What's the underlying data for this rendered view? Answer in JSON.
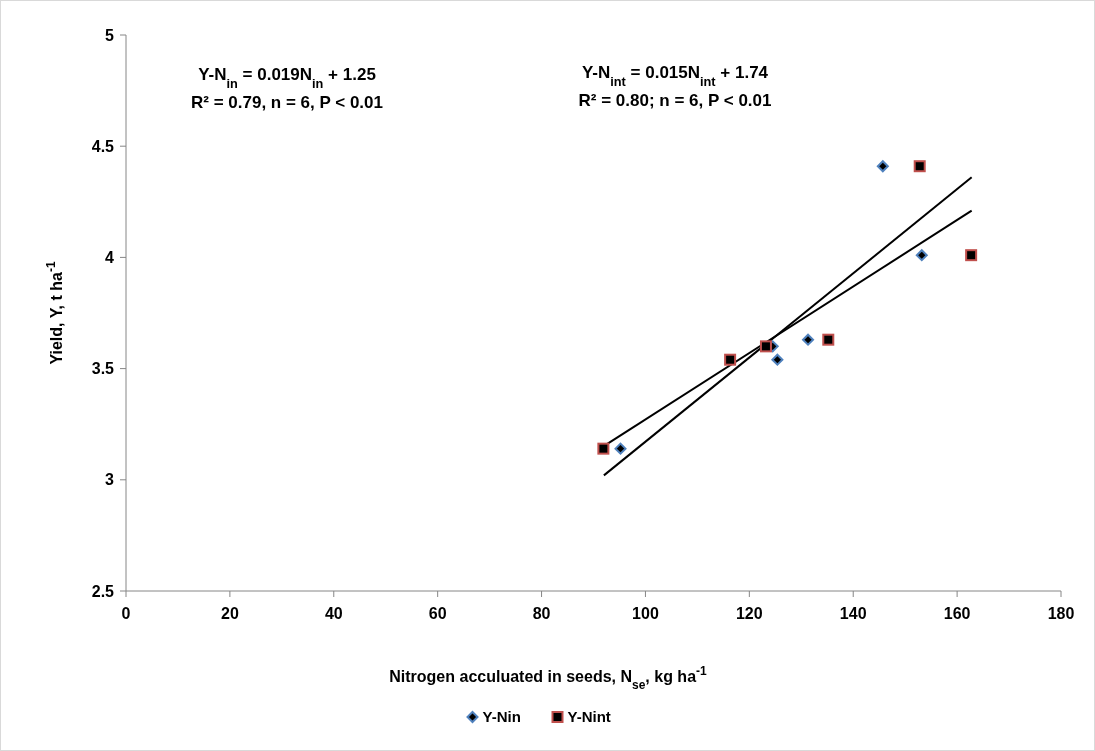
{
  "chart_data": {
    "type": "scatter",
    "xlabel": "Nitrogen acculuated in seeds, N$_{se}$, kg ha$^{-1}$",
    "ylabel": "Yield, Y, t ha$^{-1}$",
    "xlim": [
      0,
      180
    ],
    "xticks": [
      0,
      20,
      40,
      60,
      80,
      100,
      120,
      140,
      160,
      180
    ],
    "ylim": [
      2.5,
      5
    ],
    "yticks": [
      2.5,
      3,
      3.5,
      4,
      4.5,
      5
    ],
    "grid": false,
    "legend": "bottom",
    "annotations": [
      "Y-N$_{in}$ = 0.019N$_{in}$ + 1.25",
      "R² = 0.79, n = 6, P < 0.01",
      "Y-N$_{int}$ = 0.015N$_{int}$ + 1.74",
      "R² = 0.80; n = 6, P < 0.01"
    ],
    "series": [
      {
        "type": "line",
        "color": "#000000",
        "marker": "none",
        "x": [
          92,
          162.8
        ],
        "values": [
          3.02,
          4.36
        ]
      },
      {
        "type": "line",
        "color": "#000000",
        "marker": "none",
        "x": [
          91.9,
          162.8
        ],
        "values": [
          3.15,
          4.21
        ]
      },
      {
        "name": "Y-Nin",
        "type": "scatter",
        "marker": "diamond",
        "color": "#4f81bd",
        "x": [
          95.2,
          124.5,
          125.4,
          131.3,
          145.7,
          153.2
        ],
        "values": [
          3.14,
          3.6,
          3.54,
          3.63,
          4.41,
          4.01
        ]
      },
      {
        "name": "Y-Nint",
        "type": "scatter",
        "marker": "square",
        "color": "#c0504d",
        "x": [
          91.9,
          116.3,
          123.2,
          135.2,
          152.8,
          162.7
        ],
        "values": [
          3.14,
          3.54,
          3.6,
          3.63,
          4.41,
          4.01
        ]
      }
    ]
  }
}
